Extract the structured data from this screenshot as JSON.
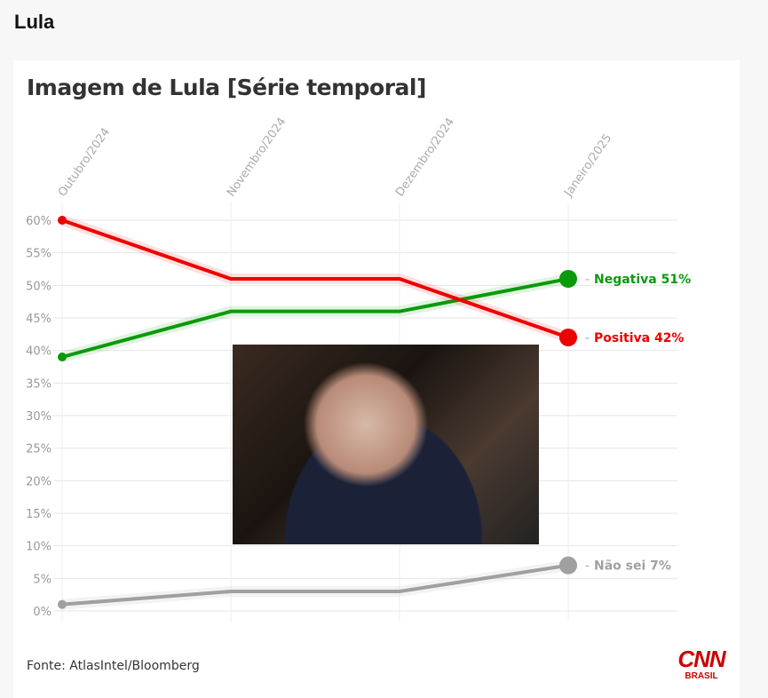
{
  "page_title": "Lula",
  "source": "Fonte: AtlasIntel/Bloomberg",
  "logo": {
    "main": "CNN",
    "sub": "BRASIL"
  },
  "chart_data": {
    "type": "line",
    "title": "Imagem de Lula [Série temporal]",
    "categories": [
      "Outubro/2024",
      "Novembro/2024",
      "Dezembro/2024",
      "Janeiro/2025"
    ],
    "y_ticks": [
      "0%",
      "5%",
      "10%",
      "15%",
      "20%",
      "25%",
      "30%",
      "35%",
      "40%",
      "45%",
      "50%",
      "55%",
      "60%"
    ],
    "ylim": [
      0,
      60
    ],
    "grid": true,
    "series": [
      {
        "name": "Negativa",
        "values": [
          39,
          46,
          46,
          51
        ],
        "color": "#0a9a0a",
        "label": "Negativa 51%"
      },
      {
        "name": "Positiva",
        "values": [
          60,
          51,
          51,
          42
        ],
        "color": "#ee0000",
        "label": "Positiva 42%"
      },
      {
        "name": "Não sei",
        "values": [
          1,
          3,
          3,
          7
        ],
        "color": "#a0a0a0",
        "label": "Não sei 7%"
      }
    ]
  }
}
